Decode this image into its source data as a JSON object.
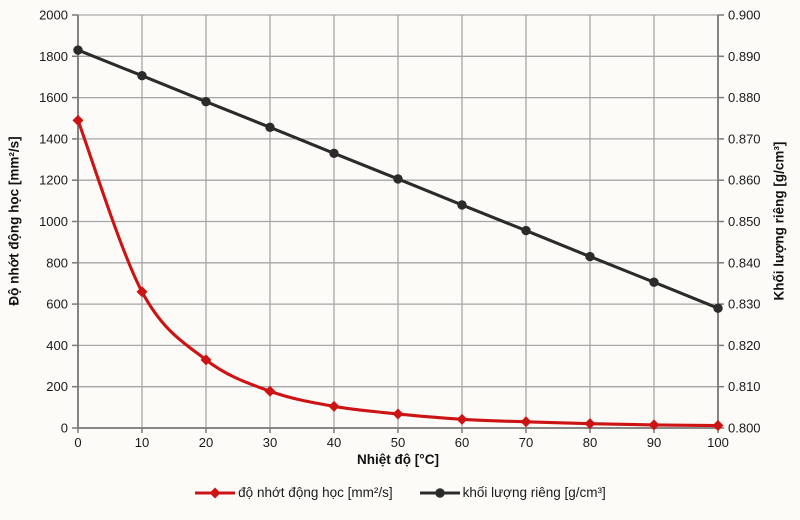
{
  "chart_data": {
    "type": "line",
    "title": "",
    "xlabel": "Nhiệt độ [°C]",
    "x": [
      0,
      10,
      20,
      30,
      40,
      50,
      60,
      70,
      80,
      90,
      100
    ],
    "x_ticks": [
      0,
      10,
      20,
      30,
      40,
      50,
      60,
      70,
      80,
      90,
      100
    ],
    "xlim": [
      0,
      100
    ],
    "grid": true,
    "legend_position": "bottom",
    "axes": {
      "left": {
        "label": "Độ nhớt động học [mm²/s]",
        "min": 0,
        "max": 2000,
        "step": 200,
        "decimals": 0
      },
      "right": {
        "label": "Khối lượng riêng [g/cm³]",
        "min": 0.8,
        "max": 0.9,
        "step": 0.01,
        "decimals": 3
      }
    },
    "series": [
      {
        "name": "độ nhớt động học [mm²/s]",
        "axis": "left",
        "color": "#cc1414",
        "marker": "diamond",
        "smooth": true,
        "values": [
          1490,
          660,
          330,
          178,
          105,
          68,
          42,
          30,
          21,
          15,
          12
        ]
      },
      {
        "name": "khối lượng riêng [g/cm³]",
        "axis": "right",
        "color": "#2b2b2b",
        "marker": "circle",
        "smooth": false,
        "values": [
          0.8915,
          0.8853,
          0.879,
          0.8728,
          0.8665,
          0.8603,
          0.854,
          0.8478,
          0.8415,
          0.8353,
          0.829
        ]
      }
    ],
    "colors": {
      "grid": "#a6a6a6",
      "axis": "#7a7a7a",
      "text": "#1a1a1a",
      "background": "#fcfbf8"
    }
  }
}
